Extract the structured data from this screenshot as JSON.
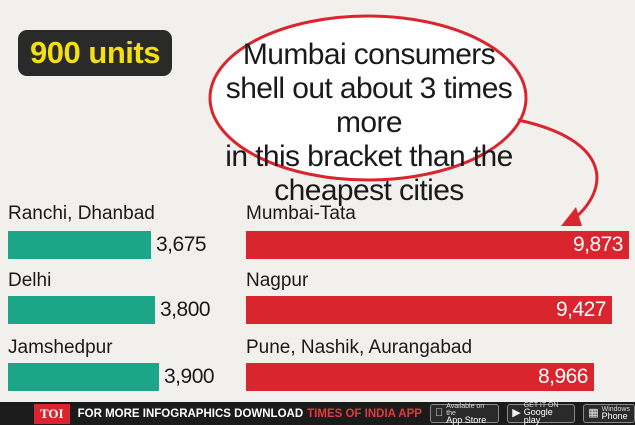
{
  "badge": "900 units",
  "callout": [
    "Mumbai consumers",
    "shell out about 3 times more",
    "in this bracket than the",
    "cheapest cities"
  ],
  "colors": {
    "low": "#1ca688",
    "high": "#d9252e",
    "badge_bg": "#2a2a2a",
    "badge_text": "#f3df12"
  },
  "chart_data": {
    "type": "bar",
    "orientation": "horizontal",
    "value_max": 9873,
    "groups": [
      {
        "name": "",
        "color": "#1ca688",
        "bars": [
          {
            "label": "Ranchi, Dhanbad",
            "value": 3675,
            "value_text": "3,675"
          },
          {
            "label": "Delhi",
            "value": 3800,
            "value_text": "3,800"
          },
          {
            "label": "Jamshedpur",
            "value": 3900,
            "value_text": "3,900"
          }
        ]
      },
      {
        "name": "",
        "color": "#d9252e",
        "bars": [
          {
            "label": "Mumbai-Tata",
            "value": 9873,
            "value_text": "9,873"
          },
          {
            "label": "Nagpur",
            "value": 9427,
            "value_text": "9,427"
          },
          {
            "label": "Pune, Nashik, Aurangabad",
            "value": 8966,
            "value_text": "8,966"
          }
        ]
      }
    ]
  },
  "footer": {
    "logo": "TOI",
    "text": "FOR MORE  INFOGRAPHICS DOWNLOAD",
    "brand": "TIMES OF INDIA  APP",
    "stores": [
      {
        "icon": "apple-icon",
        "small": "Available on the",
        "big": "App Store"
      },
      {
        "icon": "google-play-icon",
        "small": "GET IT ON",
        "big": "Google play"
      },
      {
        "icon": "windows-icon",
        "small": "Windows",
        "big": "Phone"
      }
    ]
  }
}
